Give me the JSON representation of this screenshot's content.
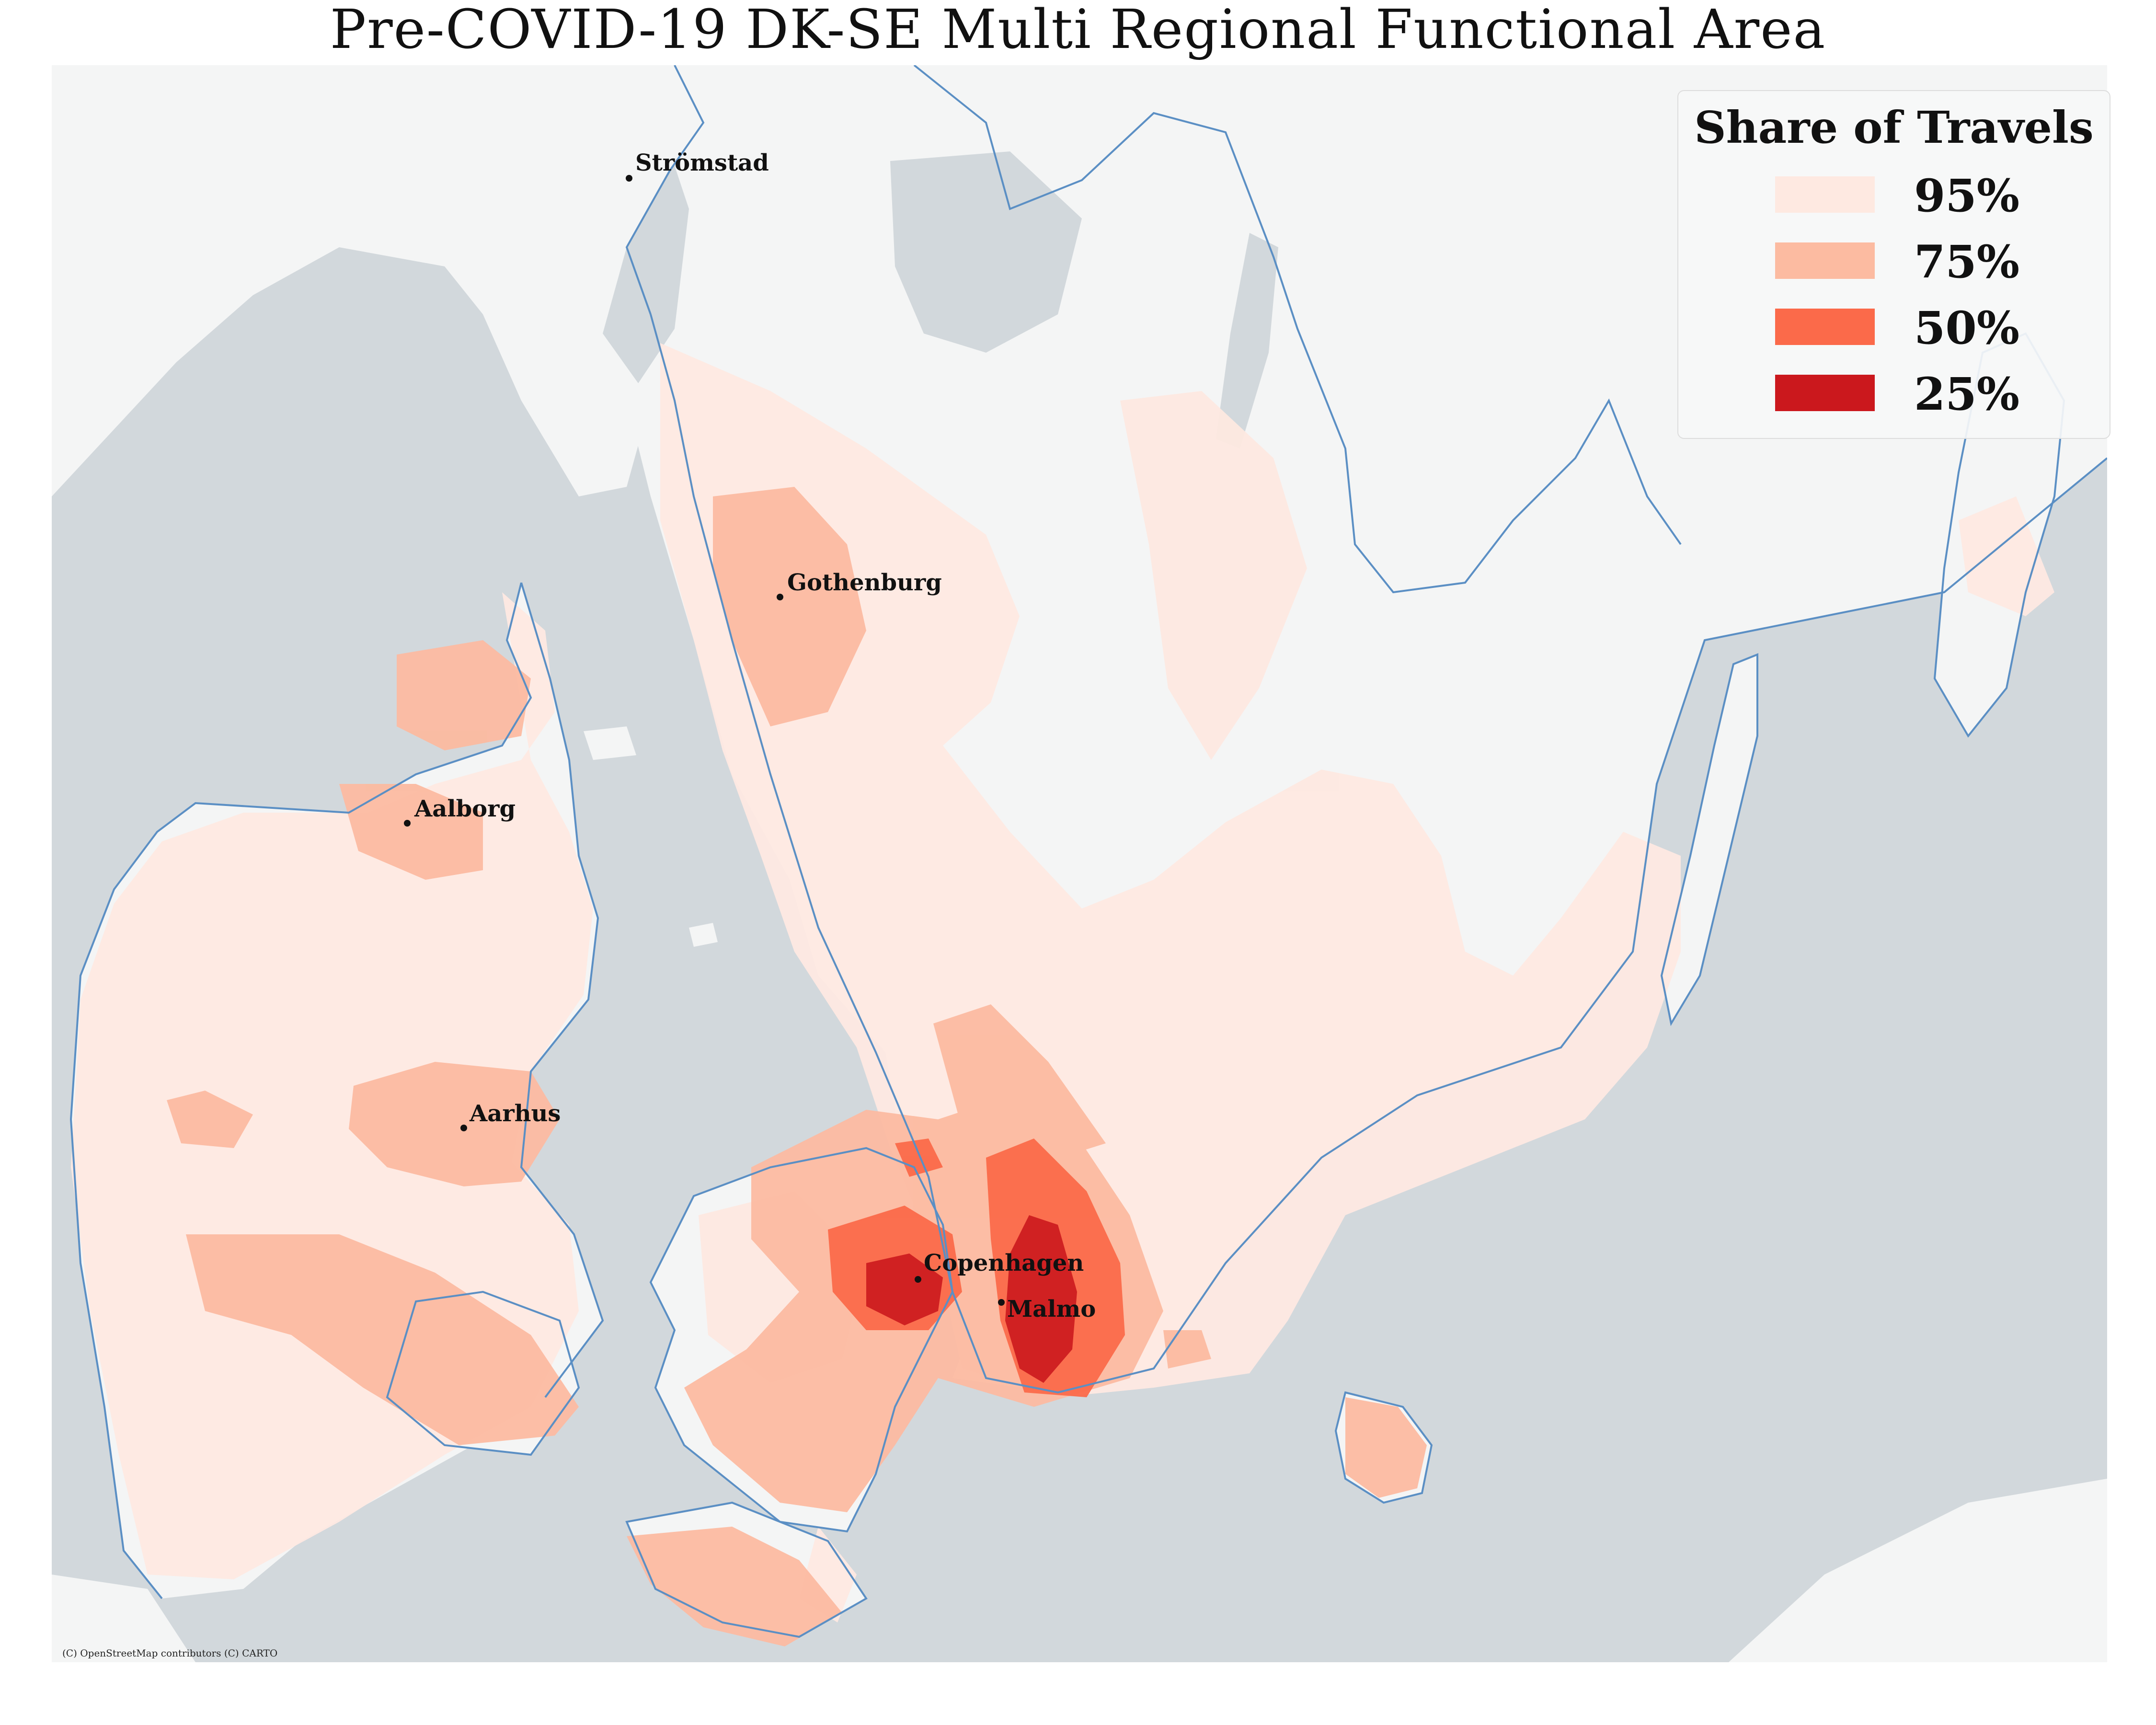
{
  "title": "Pre-COVID-19 DK-SE Multi Regional Functional Area",
  "legend": {
    "title": "Share of Travels",
    "items": [
      {
        "label": "95%",
        "color": "#fee9e1"
      },
      {
        "label": "75%",
        "color": "#fcbba1"
      },
      {
        "label": "50%",
        "color": "#fb6a4a"
      },
      {
        "label": "25%",
        "color": "#cb181d"
      }
    ]
  },
  "cities": [
    "Strömstad",
    "Gothenburg",
    "Aalborg",
    "Aarhus",
    "Copenhagen",
    "Malmo"
  ],
  "attribution": "(C) OpenStreetMap contributors (C) CARTO",
  "colors": {
    "sea": "#d2d8dc",
    "land": "#f4f5f5",
    "border": "#5b8fc4"
  }
}
